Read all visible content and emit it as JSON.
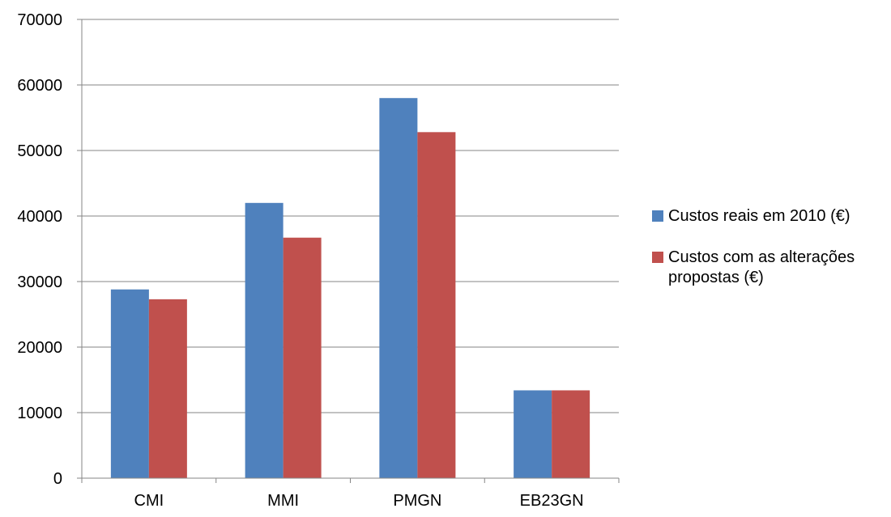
{
  "chart_data": {
    "type": "bar",
    "title": "",
    "xlabel": "",
    "ylabel": "",
    "categories": [
      "CMI",
      "MMI",
      "PMGN",
      "EB23GN"
    ],
    "series": [
      {
        "name": "Custos reais em 2010 (€)",
        "color": "#4F81BD",
        "values": [
          28800,
          42000,
          58000,
          13400
        ]
      },
      {
        "name": "Custos com as alterações propostas (€)",
        "color": "#C0504D",
        "values": [
          27300,
          36700,
          52800,
          13400
        ]
      }
    ],
    "ylim": [
      0,
      70000
    ],
    "yticks": [
      "0",
      "10000",
      "20000",
      "30000",
      "40000",
      "50000",
      "60000",
      "70000"
    ],
    "grid": true,
    "legend_position": "right"
  }
}
